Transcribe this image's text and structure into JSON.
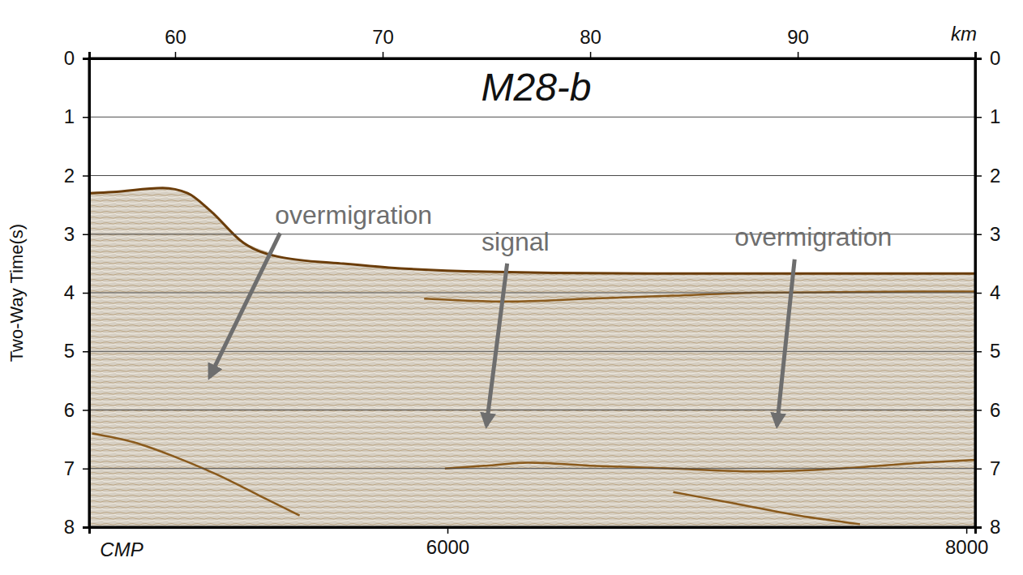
{
  "chart_data": {
    "type": "line",
    "title": "M28-b",
    "x_label": "km",
    "y_label": "Two-Way Time(s)",
    "xlim": [
      55.86,
      98.55
    ],
    "xticks": [
      60,
      70,
      80,
      90
    ],
    "ylim": [
      0,
      8
    ],
    "yticks": [
      0,
      1,
      2,
      3,
      4,
      5,
      6,
      7,
      8
    ],
    "y2lim": [
      0,
      8
    ],
    "y2ticks": [
      0,
      1,
      2,
      3,
      4,
      5,
      6,
      7,
      8
    ],
    "grid": true,
    "cmp_axis": {
      "label": "CMP",
      "lim": [
        4619,
        8034
      ],
      "ticks": [
        6000,
        8000
      ]
    },
    "series": [
      {
        "color": "#6b3d0a",
        "x": [
          55.86,
          57,
          59.4,
          60.6,
          61.7,
          63.3,
          65.2,
          68,
          70.3,
          75,
          82.8,
          90.6,
          98.55
        ],
        "values": [
          2.3,
          2.28,
          2.21,
          2.3,
          2.6,
          3.15,
          3.4,
          3.5,
          3.57,
          3.64,
          3.67,
          3.67,
          3.67
        ]
      },
      {
        "color": "#8a5a1c",
        "x": [
          72,
          76,
          80,
          84,
          88,
          92,
          96,
          98.55
        ],
        "values": [
          4.1,
          4.15,
          4.1,
          4.05,
          4.0,
          3.99,
          3.98,
          3.98
        ]
      },
      {
        "color": "#8a5a1c",
        "x": [
          73,
          75,
          77,
          80,
          84,
          88,
          92,
          96,
          98.55
        ],
        "values": [
          7.0,
          6.95,
          6.9,
          6.95,
          7.0,
          7.05,
          7.0,
          6.9,
          6.85
        ]
      },
      {
        "color": "#8a5a1c",
        "x": [
          56,
          58,
          60,
          62,
          64,
          66
        ],
        "values": [
          6.4,
          6.55,
          6.8,
          7.1,
          7.45,
          7.8
        ]
      },
      {
        "color": "#8a5a1c",
        "x": [
          84,
          87,
          90,
          93
        ],
        "values": [
          7.4,
          7.6,
          7.8,
          7.95
        ]
      }
    ],
    "annotations": [
      {
        "text": "overmigration",
        "x": 68.6,
        "y": 2.67,
        "arrow_from": [
          65.06,
          2.98
        ],
        "arrow_to": [
          61.66,
          5.44
        ]
      },
      {
        "text": "signal",
        "x": 76.4,
        "y": 3.13,
        "arrow_from": [
          76.0,
          3.5
        ],
        "arrow_to": [
          75.0,
          6.27
        ]
      },
      {
        "text": "overmigration",
        "x": 90.75,
        "y": 3.04,
        "arrow_from": [
          89.85,
          3.43
        ],
        "arrow_to": [
          89.0,
          6.27
        ]
      }
    ]
  }
}
